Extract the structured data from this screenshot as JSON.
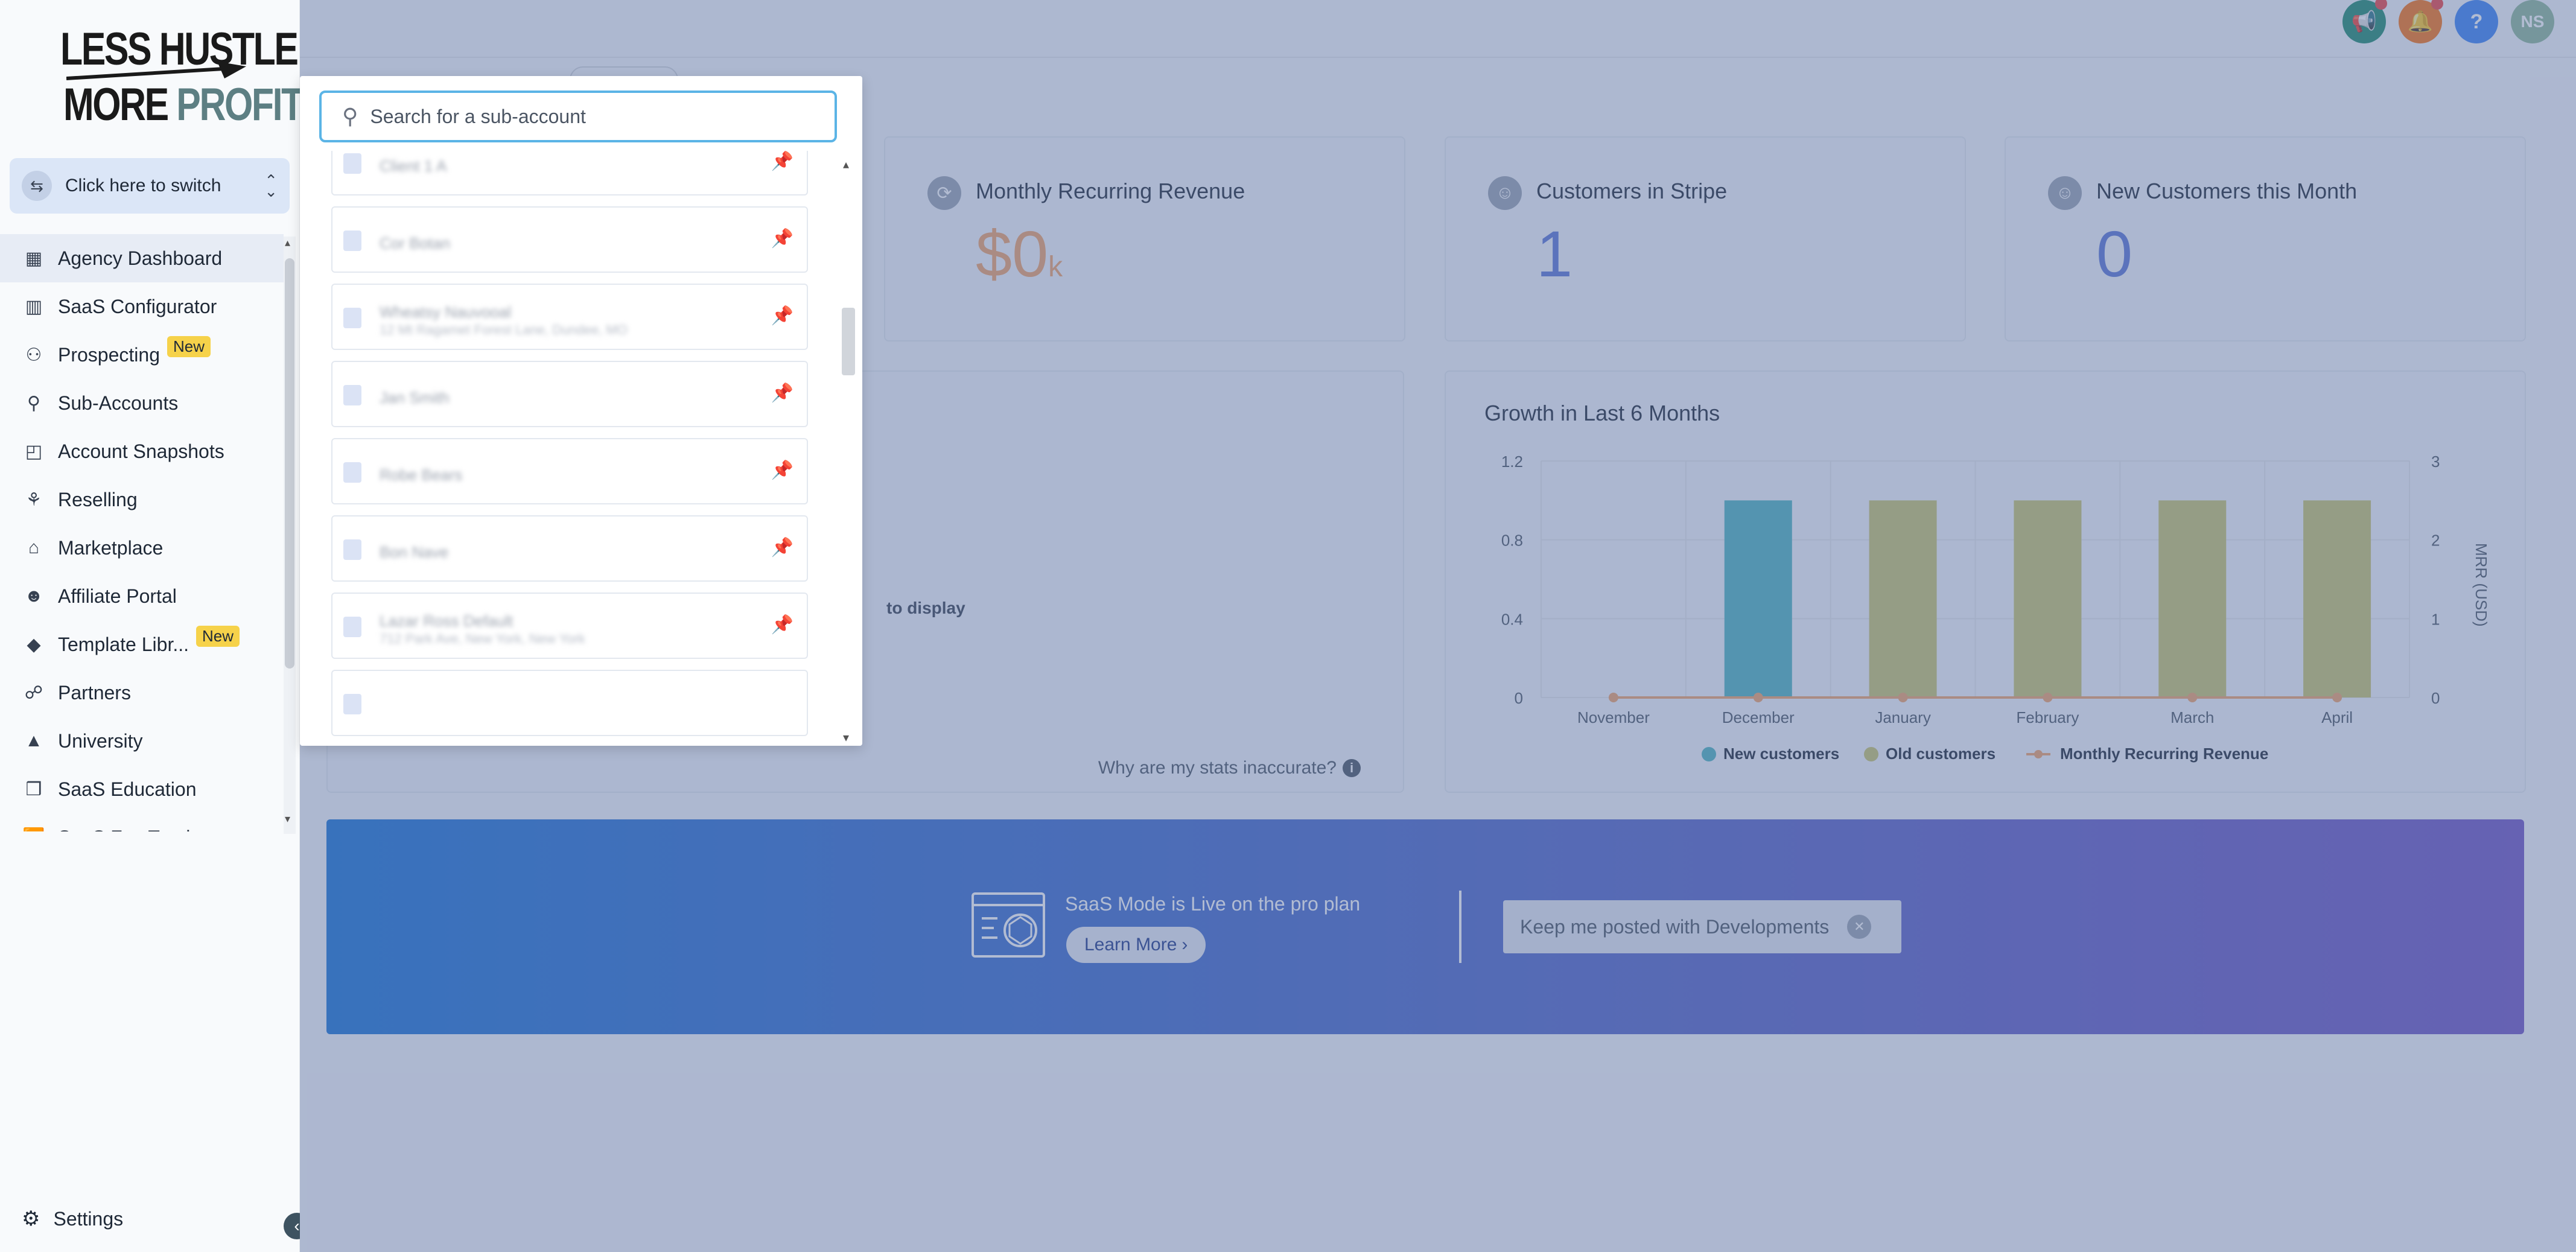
{
  "brand": {
    "line1": "LESS HUSTLE",
    "line2a": "MORE ",
    "line2b": "PROFIT"
  },
  "switcher": {
    "label": "Click here to switch"
  },
  "nav": {
    "items": [
      {
        "label": "Agency Dashboard",
        "icon": "dashboard-icon",
        "active": true
      },
      {
        "label": "SaaS Configurator",
        "icon": "chart-icon"
      },
      {
        "label": "Prospecting",
        "icon": "prospecting-icon",
        "badge": "New"
      },
      {
        "label": "Sub-Accounts",
        "icon": "user-icon"
      },
      {
        "label": "Account Snapshots",
        "icon": "snapshot-icon"
      },
      {
        "label": "Reselling",
        "icon": "reselling-icon"
      },
      {
        "label": "Marketplace",
        "icon": "bag-icon"
      },
      {
        "label": "Affiliate Portal",
        "icon": "users-icon"
      },
      {
        "label": "Template Libr...",
        "icon": "shapes-icon",
        "badge": "New"
      },
      {
        "label": "Partners",
        "icon": "handshake-icon"
      },
      {
        "label": "University",
        "icon": "graduation-icon"
      },
      {
        "label": "SaaS Education",
        "icon": "cube-icon"
      },
      {
        "label": "SaaS FastTrack",
        "icon": "fasttrack-icon"
      }
    ],
    "settings": "Settings"
  },
  "topbar": {
    "avatar_initials": "NS",
    "help": "?"
  },
  "stats": [
    {
      "label": "Monthly Recurring Revenue",
      "value": "$0",
      "unit": "k"
    },
    {
      "label": "Customers in Stripe",
      "value": "1"
    },
    {
      "label": "New Customers this Month",
      "value": "0"
    }
  ],
  "left_card": {
    "empty_text": "to display",
    "why_text": "Why are my stats inaccurate?"
  },
  "growth_chart": {
    "title": "Growth in Last 6 Months"
  },
  "chart_data": {
    "type": "bar",
    "title": "Growth in Last 6 Months",
    "categories": [
      "November",
      "December",
      "January",
      "February",
      "March",
      "April"
    ],
    "ylim": [
      0,
      1.2
    ],
    "yticks": [
      "0",
      "0.4",
      "0.8",
      "1.2"
    ],
    "y2label": "MRR (USD)",
    "y2lim": [
      0,
      3
    ],
    "y2ticks": [
      "0",
      "1",
      "2",
      "3"
    ],
    "series": [
      {
        "name": "New customers",
        "color": "#4fb3bf",
        "values": [
          0,
          1,
          0,
          0,
          0,
          0
        ]
      },
      {
        "name": "Old customers",
        "color": "#c8c56e",
        "values": [
          0,
          0,
          1,
          1,
          1,
          1
        ]
      },
      {
        "name": "Monthly Recurring Revenue",
        "color": "#f0a36b",
        "type": "line",
        "values": [
          0,
          0,
          0,
          0,
          0,
          0
        ]
      }
    ],
    "legend": "bottom"
  },
  "banner": {
    "text": "SaaS Mode is Live on the pro plan",
    "learn_more": "Learn More",
    "keep_posted": "Keep me posted with Developments"
  },
  "subaccount_dropdown": {
    "placeholder": "Search for a sub-account",
    "accounts": [
      {
        "name": "Client 1 A",
        "sub": ""
      },
      {
        "name": "Cor Botan",
        "sub": ""
      },
      {
        "name": "Wheatsy Nauvooal",
        "sub": "12 Mt Ragamet Forest Lane, Dundee, MO"
      },
      {
        "name": "Jan Smith",
        "sub": ""
      },
      {
        "name": "Robe Bears",
        "sub": ""
      },
      {
        "name": "Bon Nave",
        "sub": ""
      },
      {
        "name": "Lazar Ross Default",
        "sub": "712 Park Ave, New York, New York"
      }
    ]
  }
}
